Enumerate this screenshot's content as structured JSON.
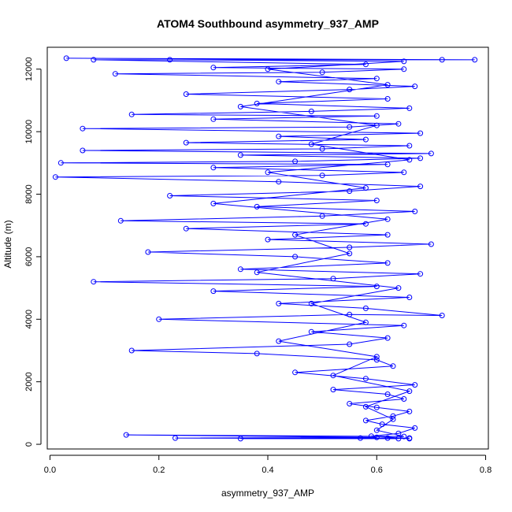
{
  "chart_data": {
    "type": "line",
    "title": "ATOM4 Southbound asymmetry_937_AMP",
    "xlabel": "asymmetry_937_AMP",
    "ylabel": "Altitude (m)",
    "xlim": [
      -0.005,
      0.805
    ],
    "ylim": [
      -150,
      12700
    ],
    "xticks": [
      0.0,
      0.2,
      0.4,
      0.6,
      0.8
    ],
    "xtick_labels": [
      "0.0",
      "0.2",
      "0.4",
      "0.6",
      "0.8"
    ],
    "yticks": [
      0,
      2000,
      4000,
      6000,
      8000,
      10000,
      12000
    ],
    "ytick_labels": [
      "0",
      "2000",
      "4000",
      "6000",
      "8000",
      "10000",
      "12000"
    ],
    "grid": false,
    "legend": "none",
    "markers": "open-circle",
    "series": [
      {
        "color": "#0000ff",
        "points": [
          [
            0.62,
            200
          ],
          [
            0.66,
            180
          ],
          [
            0.59,
            260
          ],
          [
            0.64,
            350
          ],
          [
            0.67,
            520
          ],
          [
            0.61,
            640
          ],
          [
            0.58,
            760
          ],
          [
            0.63,
            900
          ],
          [
            0.66,
            1050
          ],
          [
            0.6,
            1180
          ],
          [
            0.55,
            1300
          ],
          [
            0.65,
            1450
          ],
          [
            0.62,
            1600
          ],
          [
            0.52,
            1750
          ],
          [
            0.67,
            1900
          ],
          [
            0.58,
            2100
          ],
          [
            0.45,
            2300
          ],
          [
            0.63,
            2500
          ],
          [
            0.6,
            2700
          ],
          [
            0.38,
            2900
          ],
          [
            0.15,
            3000
          ],
          [
            0.55,
            3200
          ],
          [
            0.62,
            3400
          ],
          [
            0.48,
            3600
          ],
          [
            0.65,
            3800
          ],
          [
            0.2,
            4000
          ],
          [
            0.55,
            4150
          ],
          [
            0.72,
            4120
          ],
          [
            0.58,
            4350
          ],
          [
            0.42,
            4500
          ],
          [
            0.66,
            4700
          ],
          [
            0.3,
            4900
          ],
          [
            0.6,
            5050
          ],
          [
            0.08,
            5200
          ],
          [
            0.52,
            5300
          ],
          [
            0.68,
            5450
          ],
          [
            0.35,
            5600
          ],
          [
            0.62,
            5800
          ],
          [
            0.45,
            6000
          ],
          [
            0.18,
            6150
          ],
          [
            0.55,
            6300
          ],
          [
            0.7,
            6400
          ],
          [
            0.4,
            6550
          ],
          [
            0.62,
            6700
          ],
          [
            0.25,
            6900
          ],
          [
            0.58,
            7050
          ],
          [
            0.13,
            7150
          ],
          [
            0.5,
            7300
          ],
          [
            0.67,
            7450
          ],
          [
            0.38,
            7600
          ],
          [
            0.6,
            7800
          ],
          [
            0.22,
            7950
          ],
          [
            0.55,
            8100
          ],
          [
            0.68,
            8250
          ],
          [
            0.42,
            8400
          ],
          [
            0.01,
            8550
          ],
          [
            0.5,
            8600
          ],
          [
            0.65,
            8700
          ],
          [
            0.3,
            8850
          ],
          [
            0.62,
            8950
          ],
          [
            0.02,
            9000
          ],
          [
            0.45,
            9050
          ],
          [
            0.68,
            9150
          ],
          [
            0.35,
            9250
          ],
          [
            0.7,
            9300
          ],
          [
            0.06,
            9400
          ],
          [
            0.5,
            9450
          ],
          [
            0.66,
            9550
          ],
          [
            0.25,
            9650
          ],
          [
            0.58,
            9750
          ],
          [
            0.42,
            9850
          ],
          [
            0.68,
            9950
          ],
          [
            0.06,
            10100
          ],
          [
            0.55,
            10150
          ],
          [
            0.64,
            10250
          ],
          [
            0.3,
            10400
          ],
          [
            0.6,
            10500
          ],
          [
            0.15,
            10550
          ],
          [
            0.48,
            10650
          ],
          [
            0.66,
            10750
          ],
          [
            0.38,
            10900
          ],
          [
            0.62,
            11050
          ],
          [
            0.25,
            11200
          ],
          [
            0.55,
            11350
          ],
          [
            0.67,
            11450
          ],
          [
            0.42,
            11600
          ],
          [
            0.6,
            11700
          ],
          [
            0.12,
            11850
          ],
          [
            0.5,
            11900
          ],
          [
            0.65,
            12000
          ],
          [
            0.3,
            12050
          ],
          [
            0.58,
            12150
          ],
          [
            0.08,
            12300
          ],
          [
            0.72,
            12300
          ],
          [
            0.03,
            12350
          ],
          [
            0.78,
            12300
          ],
          [
            0.22,
            12300
          ],
          [
            0.65,
            12250
          ],
          [
            0.4,
            12000
          ],
          [
            0.62,
            11500
          ],
          [
            0.35,
            10800
          ],
          [
            0.6,
            10200
          ],
          [
            0.48,
            9600
          ],
          [
            0.66,
            9100
          ],
          [
            0.4,
            8700
          ],
          [
            0.58,
            8200
          ],
          [
            0.3,
            7700
          ],
          [
            0.62,
            7200
          ],
          [
            0.45,
            6700
          ],
          [
            0.55,
            6100
          ],
          [
            0.38,
            5500
          ],
          [
            0.64,
            5000
          ],
          [
            0.48,
            4500
          ],
          [
            0.58,
            3900
          ],
          [
            0.42,
            3300
          ],
          [
            0.6,
            2800
          ],
          [
            0.52,
            2200
          ],
          [
            0.66,
            1700
          ],
          [
            0.58,
            1200
          ],
          [
            0.63,
            800
          ],
          [
            0.6,
            450
          ],
          [
            0.65,
            250
          ],
          [
            0.14,
            300
          ],
          [
            0.6,
            220
          ],
          [
            0.23,
            200
          ],
          [
            0.64,
            180
          ],
          [
            0.35,
            180
          ],
          [
            0.66,
            200
          ],
          [
            0.57,
            200
          ]
        ]
      }
    ]
  }
}
